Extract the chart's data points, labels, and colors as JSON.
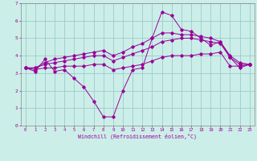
{
  "bg_color": "#cceee8",
  "line_color": "#990099",
  "grid_color": "#99cccc",
  "xlabel": "Windchill (Refroidissement éolien,°C)",
  "xlim": [
    -0.5,
    23.5
  ],
  "ylim": [
    0,
    7
  ],
  "xticks": [
    0,
    1,
    2,
    3,
    4,
    5,
    6,
    7,
    8,
    9,
    10,
    11,
    12,
    13,
    14,
    15,
    16,
    17,
    18,
    19,
    20,
    21,
    22,
    23
  ],
  "yticks": [
    0,
    1,
    2,
    3,
    4,
    5,
    6,
    7
  ],
  "series": [
    {
      "x": [
        0,
        1,
        2,
        3,
        4,
        5,
        6,
        7,
        8,
        9,
        10,
        11,
        12,
        13,
        14,
        15,
        16,
        17,
        18,
        19,
        20,
        21,
        22,
        23
      ],
      "y": [
        3.3,
        3.1,
        3.8,
        3.1,
        3.2,
        2.7,
        2.2,
        1.4,
        0.5,
        0.5,
        2.0,
        3.2,
        3.3,
        5.0,
        6.5,
        6.3,
        5.5,
        5.4,
        5.0,
        4.6,
        4.8,
        3.9,
        3.3,
        3.5
      ]
    },
    {
      "x": [
        0,
        1,
        2,
        3,
        4,
        5,
        6,
        7,
        8,
        9,
        10,
        11,
        12,
        13,
        14,
        15,
        16,
        17,
        18,
        19,
        20,
        21,
        22,
        23
      ],
      "y": [
        3.3,
        3.2,
        3.3,
        3.3,
        3.4,
        3.4,
        3.4,
        3.5,
        3.5,
        3.2,
        3.3,
        3.4,
        3.5,
        3.7,
        3.9,
        4.0,
        4.0,
        4.0,
        4.1,
        4.1,
        4.2,
        3.4,
        3.4,
        3.5
      ]
    },
    {
      "x": [
        0,
        1,
        2,
        3,
        4,
        5,
        6,
        7,
        8,
        9,
        10,
        11,
        12,
        13,
        14,
        15,
        16,
        17,
        18,
        19,
        20,
        21,
        22,
        23
      ],
      "y": [
        3.3,
        3.3,
        3.5,
        3.6,
        3.7,
        3.8,
        3.9,
        4.0,
        4.0,
        3.7,
        3.9,
        4.1,
        4.3,
        4.5,
        4.8,
        4.9,
        5.0,
        5.0,
        4.9,
        4.8,
        4.7,
        3.9,
        3.5,
        3.5
      ]
    },
    {
      "x": [
        0,
        1,
        2,
        3,
        4,
        5,
        6,
        7,
        8,
        9,
        10,
        11,
        12,
        13,
        14,
        15,
        16,
        17,
        18,
        19,
        20,
        21,
        22,
        23
      ],
      "y": [
        3.3,
        3.3,
        3.6,
        3.8,
        3.9,
        4.0,
        4.1,
        4.2,
        4.3,
        4.0,
        4.2,
        4.5,
        4.7,
        5.0,
        5.3,
        5.3,
        5.2,
        5.2,
        5.1,
        5.0,
        4.8,
        4.0,
        3.6,
        3.5
      ]
    }
  ]
}
